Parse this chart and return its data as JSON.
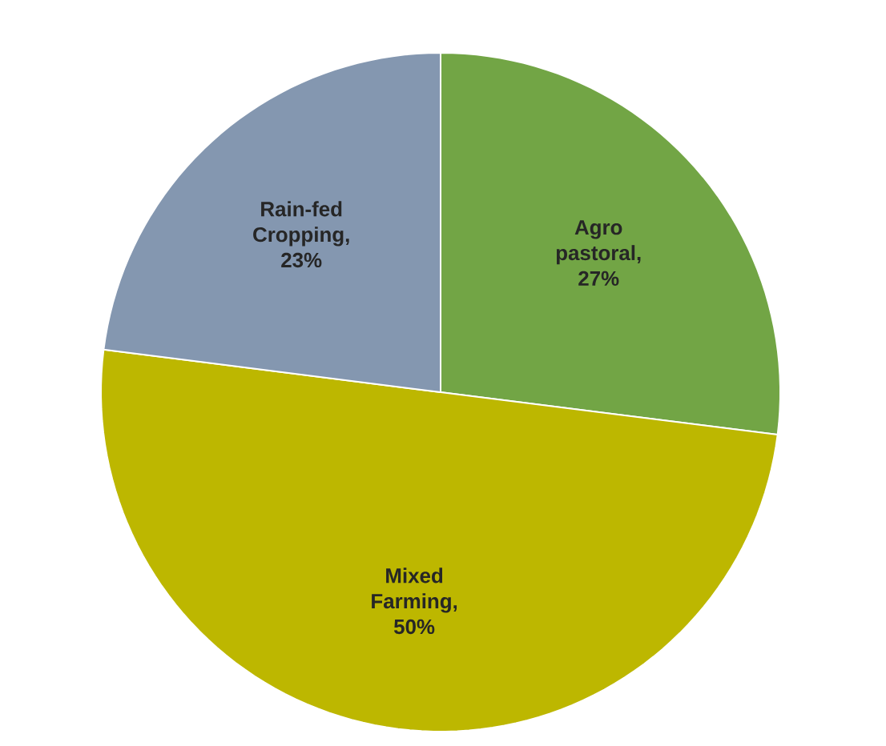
{
  "chart_data": {
    "type": "pie",
    "categories": [
      "Agro pastoral",
      "Mixed Farming",
      "Rain-fed Cropping"
    ],
    "values": [
      27,
      50,
      23
    ],
    "value_labels": [
      ", 27%",
      ", 50%",
      ", 23%"
    ],
    "colors": [
      "#72a545",
      "#bdb700",
      "#8497b0"
    ]
  }
}
